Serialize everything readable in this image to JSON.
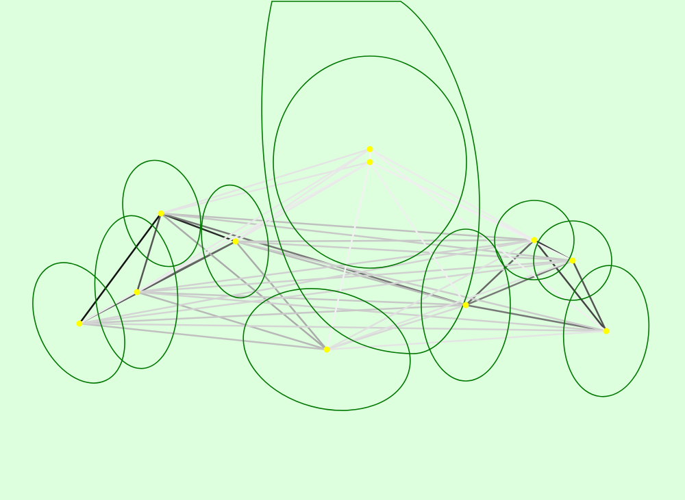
{
  "canvas": {
    "background": "#ddffdd"
  },
  "style": {
    "node_color": "#ffff00",
    "ellipse_color": "#007700"
  },
  "nodes": [
    {
      "id": "n0"
    },
    {
      "id": "n1"
    },
    {
      "id": "n2"
    },
    {
      "id": "n3"
    },
    {
      "id": "n4"
    },
    {
      "id": "n5"
    },
    {
      "id": "n6"
    },
    {
      "id": "n7"
    },
    {
      "id": "n8"
    },
    {
      "id": "n9"
    },
    {
      "id": "n10"
    }
  ],
  "edges": [
    {
      "a": "n2",
      "b": "n4",
      "color": "#111111"
    },
    {
      "a": "n2",
      "b": "n3",
      "color": "#2a2a2a"
    },
    {
      "a": "n2",
      "b": "n5",
      "color": "#555555"
    },
    {
      "a": "n4",
      "b": "n3",
      "color": "#555555"
    },
    {
      "a": "n4",
      "b": "n5",
      "color": "#666666"
    },
    {
      "a": "n3",
      "b": "n5",
      "color": "#666666"
    },
    {
      "a": "n7",
      "b": "n9",
      "color": "#3a3a3a"
    },
    {
      "a": "n7",
      "b": "n10",
      "color": "#444444"
    },
    {
      "a": "n9",
      "b": "n10",
      "color": "#555555"
    },
    {
      "a": "n8",
      "b": "n7",
      "color": "#666666"
    },
    {
      "a": "n8",
      "b": "n9",
      "color": "#777777"
    },
    {
      "a": "n8",
      "b": "n10",
      "color": "#777777"
    },
    {
      "a": "n2",
      "b": "n8",
      "color": "#777777"
    },
    {
      "a": "n2",
      "b": "n6",
      "color": "#aaaaaa"
    },
    {
      "a": "n3",
      "b": "n6",
      "color": "#aaaaaa"
    },
    {
      "a": "n5",
      "b": "n6",
      "color": "#b8b8b8"
    },
    {
      "a": "n4",
      "b": "n6",
      "color": "#c0c0c0"
    },
    {
      "a": "n2",
      "b": "n7",
      "color": "#c0c0c0"
    },
    {
      "a": "n2",
      "b": "n9",
      "color": "#c8c8c8"
    },
    {
      "a": "n3",
      "b": "n7",
      "color": "#c8c8c8"
    },
    {
      "a": "n3",
      "b": "n8",
      "color": "#bbbbbb"
    },
    {
      "a": "n3",
      "b": "n9",
      "color": "#cccccc"
    },
    {
      "a": "n3",
      "b": "n10",
      "color": "#cccccc"
    },
    {
      "a": "n5",
      "b": "n7",
      "color": "#d0d0d0"
    },
    {
      "a": "n5",
      "b": "n8",
      "color": "#c8c8c8"
    },
    {
      "a": "n5",
      "b": "n9",
      "color": "#d0d0d0"
    },
    {
      "a": "n5",
      "b": "n10",
      "color": "#d0d0d0"
    },
    {
      "a": "n4",
      "b": "n8",
      "color": "#c8c8c8"
    },
    {
      "a": "n4",
      "b": "n7",
      "color": "#d4d4d4"
    },
    {
      "a": "n4",
      "b": "n9",
      "color": "#d4d4d4"
    },
    {
      "a": "n4",
      "b": "n10",
      "color": "#d4d4d4"
    },
    {
      "a": "n6",
      "b": "n8",
      "color": "#d8d8d8"
    },
    {
      "a": "n6",
      "b": "n7",
      "color": "#e0e0e0"
    },
    {
      "a": "n6",
      "b": "n9",
      "color": "#e0e0e0"
    },
    {
      "a": "n6",
      "b": "n10",
      "color": "#e4e4e4"
    },
    {
      "a": "n0",
      "b": "n2",
      "color": "#e4e4e4"
    },
    {
      "a": "n1",
      "b": "n2",
      "color": "#e4e4e4"
    },
    {
      "a": "n0",
      "b": "n3",
      "color": "#e8e8e8"
    },
    {
      "a": "n1",
      "b": "n3",
      "color": "#e8e8e8"
    },
    {
      "a": "n0",
      "b": "n5",
      "color": "#e8e8e8"
    },
    {
      "a": "n1",
      "b": "n5",
      "color": "#e8e8e8"
    },
    {
      "a": "n1",
      "b": "n4",
      "color": "#ececec"
    },
    {
      "a": "n0",
      "b": "n7",
      "color": "#ececec"
    },
    {
      "a": "n1",
      "b": "n7",
      "color": "#ececec"
    },
    {
      "a": "n1",
      "b": "n8",
      "color": "#f0f0f0"
    },
    {
      "a": "n1",
      "b": "n6",
      "color": "#f2f2f2"
    },
    {
      "a": "n1",
      "b": "n9",
      "color": "#f0f0f0"
    },
    {
      "a": "n0",
      "b": "n10",
      "color": "#f0f0f0"
    },
    {
      "a": "n0",
      "b": "n1",
      "color": "#f4f4f4"
    }
  ],
  "ellipses": [
    {
      "id": "e-n0-large"
    },
    {
      "id": "e-n1"
    },
    {
      "id": "e-n2"
    },
    {
      "id": "e-n3"
    },
    {
      "id": "e-n4"
    },
    {
      "id": "e-n5"
    },
    {
      "id": "e-n6"
    },
    {
      "id": "e-n7"
    },
    {
      "id": "e-n8"
    },
    {
      "id": "e-n9"
    },
    {
      "id": "e-n10"
    }
  ]
}
